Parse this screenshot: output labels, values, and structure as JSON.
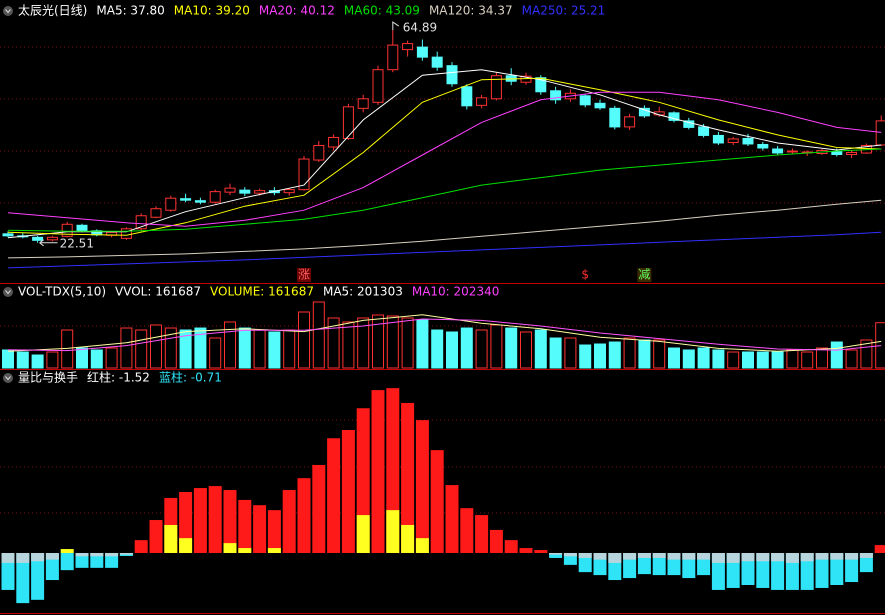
{
  "chart_data": [
    {
      "type": "candlestick",
      "title": "太辰光(日线)",
      "ylim": [
        14.5,
        66.9
      ],
      "up_color": "#ff3232",
      "down_color": "#54fcfc",
      "open": [
        24.3,
        23.9,
        23.6,
        23.1,
        23.8,
        26.0,
        24.9,
        24.0,
        23.4,
        25.3,
        27.6,
        29.0,
        31.3,
        30.9,
        30.6,
        32.6,
        33.0,
        32.4,
        32.9,
        32.5,
        33.1,
        39.0,
        41.6,
        43.3,
        49.3,
        50.5,
        57.0,
        61.0,
        61.5,
        59.5,
        57.8,
        53.6,
        49.9,
        51.2,
        55.8,
        54.5,
        55.4,
        52.8,
        51.2,
        51.8,
        50.3,
        49.3,
        45.6,
        49.3,
        48.0,
        48.4,
        46.8,
        45.6,
        43.9,
        42.5,
        43.3,
        42.1,
        41.2,
        40.6,
        40.5,
        40.3,
        40.7,
        40.1,
        40.4,
        42.0
      ],
      "high": [
        24.8,
        24.5,
        23.9,
        23.9,
        26.7,
        26.3,
        25.2,
        24.9,
        25.6,
        28.4,
        29.8,
        31.9,
        32.3,
        31.5,
        33.1,
        34.3,
        33.6,
        33.3,
        33.6,
        33.4,
        39.8,
        42.8,
        44.1,
        50.2,
        52.0,
        57.8,
        64.89,
        62.8,
        63.0,
        60.6,
        58.5,
        54.1,
        52.0,
        56.5,
        57.3,
        56.4,
        55.9,
        53.6,
        53.1,
        52.2,
        51.0,
        49.8,
        48.2,
        49.9,
        49.6,
        48.7,
        47.4,
        46.2,
        44.6,
        43.6,
        44.2,
        42.6,
        41.8,
        41.3,
        40.9,
        41.2,
        41.3,
        40.9,
        42.3,
        47.9
      ],
      "low": [
        23.6,
        23.4,
        22.51,
        22.8,
        23.6,
        24.6,
        23.8,
        23.6,
        23.1,
        25.0,
        27.4,
        28.7,
        30.6,
        30.2,
        30.3,
        32.0,
        31.8,
        31.9,
        32.0,
        31.9,
        32.9,
        38.6,
        40.9,
        43.0,
        48.5,
        50.0,
        56.5,
        59.6,
        58.8,
        56.8,
        53.6,
        49.1,
        49.3,
        50.9,
        53.9,
        54.0,
        52.0,
        50.2,
        50.6,
        49.5,
        49.0,
        45.1,
        45.0,
        47.4,
        47.6,
        46.5,
        45.1,
        43.5,
        42.0,
        42.0,
        41.8,
        40.9,
        40.0,
        40.1,
        39.8,
        40.0,
        39.7,
        39.4,
        40.2,
        41.8
      ],
      "close": [
        23.9,
        23.8,
        23.0,
        23.6,
        26.2,
        24.9,
        24.1,
        24.6,
        25.3,
        27.9,
        29.3,
        31.4,
        31.0,
        30.6,
        32.7,
        33.4,
        32.4,
        32.9,
        32.5,
        33.1,
        39.2,
        41.9,
        43.5,
        49.6,
        51.2,
        57.0,
        61.9,
        62.2,
        59.5,
        57.5,
        54.2,
        49.8,
        51.4,
        55.8,
        54.7,
        55.7,
        52.6,
        51.0,
        52.3,
        50.0,
        49.4,
        45.6,
        47.6,
        47.8,
        48.6,
        46.9,
        45.5,
        43.9,
        42.4,
        43.2,
        42.2,
        41.4,
        40.4,
        40.8,
        40.6,
        40.9,
        40.1,
        40.5,
        41.9,
        46.8
      ],
      "lines": [
        {
          "color": "#ffffff",
          "legend": {
            "value": 37.8,
            "label": "MA5: 37.80"
          },
          "x": [
            0,
            4,
            8,
            12,
            16,
            20,
            24,
            28,
            32,
            36,
            40,
            44,
            48,
            52,
            56,
            59
          ],
          "values": [
            23.5,
            24.7,
            24.7,
            28.7,
            31.5,
            34.0,
            47.0,
            55.9,
            57.0,
            55.0,
            52.0,
            48.0,
            45.0,
            42.4,
            41.0,
            42.0
          ]
        },
        {
          "color": "#ffff00",
          "legend": {
            "value": 39.2,
            "label": "MA10: 39.20"
          },
          "x": [
            0,
            4,
            8,
            12,
            16,
            20,
            24,
            28,
            32,
            36,
            40,
            44,
            48,
            52,
            56,
            59
          ],
          "values": [
            24.6,
            24.2,
            24.0,
            26.5,
            29.8,
            32.0,
            40.5,
            50.5,
            55.0,
            55.3,
            53.0,
            50.5,
            47.0,
            44.0,
            41.5,
            41.2
          ]
        },
        {
          "color": "#ff40ff",
          "legend": {
            "value": 40.12,
            "label": "MA20: 40.12"
          },
          "x": [
            0,
            4,
            8,
            12,
            16,
            20,
            24,
            28,
            32,
            36,
            40,
            44,
            48,
            52,
            56,
            59
          ],
          "values": [
            28.5,
            27.5,
            26.5,
            25.8,
            27.0,
            29.0,
            33.5,
            40.0,
            46.5,
            51.0,
            52.5,
            52.5,
            51.0,
            48.5,
            45.5,
            44.5
          ]
        },
        {
          "color": "#00e000",
          "legend": {
            "value": 43.09,
            "label": "MA60: 43.09"
          },
          "x": [
            0,
            4,
            8,
            12,
            16,
            20,
            24,
            28,
            32,
            36,
            40,
            44,
            48,
            52,
            56,
            59
          ],
          "values": [
            25.0,
            24.8,
            24.8,
            25.2,
            26.2,
            27.2,
            29.0,
            31.5,
            34.0,
            35.5,
            37.0,
            38.0,
            39.0,
            40.0,
            40.8,
            41.2
          ]
        },
        {
          "color": "#d8d0c0",
          "legend": {
            "value": 34.37,
            "label": "MA120: 34.37"
          },
          "x": [
            0,
            4,
            8,
            12,
            16,
            20,
            24,
            28,
            32,
            36,
            40,
            44,
            48,
            52,
            56,
            59
          ],
          "values": [
            19.5,
            19.7,
            20.0,
            20.3,
            20.8,
            21.3,
            22.0,
            22.8,
            23.8,
            24.8,
            25.8,
            26.8,
            28.0,
            29.0,
            30.2,
            31.0
          ]
        },
        {
          "color": "#3030ff",
          "legend": {
            "value": 25.21,
            "label": "MA250: 25.21"
          },
          "x": [
            0,
            4,
            8,
            12,
            16,
            20,
            24,
            28,
            32,
            36,
            40,
            44,
            48,
            52,
            56,
            59
          ],
          "values": [
            17.5,
            17.9,
            18.3,
            18.7,
            19.1,
            19.6,
            20.1,
            20.6,
            21.1,
            21.6,
            22.1,
            22.6,
            23.1,
            23.6,
            24.1,
            24.6
          ]
        }
      ],
      "annotations": [
        {
          "text": "涨",
          "at": 20,
          "color": "#ff6060",
          "background": "#6a0000"
        },
        {
          "text": "$",
          "at": 39,
          "color": "#ff3030"
        },
        {
          "text": "减",
          "at": 43,
          "color": "#60ff60",
          "background": "#3a2a00"
        }
      ]
    },
    {
      "type": "volume",
      "title": "VOL-TDX(5,10)",
      "ylim": [
        0,
        250000
      ],
      "readouts": [
        {
          "value": 161687,
          "label": "VVOL: 161687",
          "color": "#ffffff"
        },
        {
          "value": 161687,
          "label": "VOLUME: 161687",
          "color": "#ffff00"
        },
        {
          "value": 201303,
          "label": "MA5: 201303",
          "color": "#ffffff"
        },
        {
          "value": 202340,
          "label": "MA10: 202340",
          "color": "#ff40ff"
        }
      ],
      "values": [
        64300,
        57100,
        46400,
        57100,
        135700,
        71400,
        64300,
        71400,
        142800,
        135700,
        153600,
        142800,
        135700,
        142800,
        107100,
        164300,
        142800,
        135700,
        128600,
        135700,
        200000,
        235700,
        178600,
        164300,
        178600,
        189300,
        185700,
        178600,
        171400,
        135700,
        128600,
        142800,
        135700,
        153600,
        142800,
        128600,
        135700,
        107100,
        107100,
        82100,
        85700,
        92800,
        107100,
        100000,
        100000,
        71400,
        64300,
        71400,
        64300,
        57100,
        57100,
        57100,
        57100,
        64300,
        57100,
        71400,
        92800,
        64300,
        100000,
        161687
      ],
      "lines": [
        {
          "color": "#ffffa0",
          "x": [
            0,
            4,
            8,
            12,
            16,
            20,
            24,
            28,
            32,
            36,
            40,
            44,
            48,
            52,
            56,
            59
          ],
          "values": [
            60000,
            70000,
            90000,
            130000,
            140000,
            130000,
            170000,
            190000,
            160000,
            140000,
            110000,
            95000,
            70000,
            60000,
            70000,
            95000
          ]
        },
        {
          "color": "#ff55ff",
          "x": [
            0,
            4,
            8,
            12,
            16,
            20,
            24,
            28,
            32,
            36,
            40,
            44,
            48,
            52,
            56,
            59
          ],
          "values": [
            65000,
            62000,
            80000,
            115000,
            135000,
            135000,
            150000,
            175000,
            170000,
            150000,
            125000,
            105000,
            85000,
            68000,
            64000,
            80000
          ]
        }
      ]
    },
    {
      "type": "dual_bar",
      "title": "量比与换手",
      "ylim": [
        -1.88,
        5.55
      ],
      "series": [
        {
          "legend": {
            "value": -1.52,
            "label": "红柱: -1.52",
            "color": "#ffffff"
          },
          "pos_color": "#ff1a1a",
          "neg_color": "#30e4f8",
          "values": [
            -1.12,
            -1.52,
            -1.42,
            -0.82,
            -0.52,
            -0.45,
            -0.45,
            -0.45,
            -0.09,
            0.39,
            1,
            1.67,
            1.85,
            1.97,
            2.03,
            1.91,
            1.61,
            1.45,
            1.3,
            1.91,
            2.27,
            2.67,
            3.48,
            3.73,
            4.39,
            4.94,
            5,
            4.55,
            4.03,
            3.12,
            2.06,
            1.36,
            1.15,
            0.7,
            0.39,
            0.15,
            0.09,
            -0.15,
            -0.36,
            -0.58,
            -0.67,
            -0.82,
            -0.76,
            -0.64,
            -0.67,
            -0.67,
            -0.76,
            -0.67,
            -1.12,
            -1.06,
            -0.97,
            -1.06,
            -1.12,
            -1.12,
            -1.12,
            -1.06,
            -0.97,
            -0.88,
            -0.58,
            0.24
          ]
        },
        {
          "legend": {
            "value": -0.71,
            "label": "蓝柱: -0.71",
            "color": "#30e4f8"
          },
          "pos_color": "#ffff20",
          "neg_color": "#b8d4dc",
          "values": [
            -0.3,
            -0.3,
            -0.25,
            -0.2,
            0.12,
            -0.1,
            -0.1,
            -0.1,
            -0.05,
            0,
            0,
            0.85,
            0.45,
            0,
            0,
            0.3,
            0.15,
            0,
            0.15,
            0,
            0,
            0,
            0,
            0,
            1.15,
            0,
            1.3,
            0.85,
            0.45,
            0,
            0,
            0,
            0,
            0,
            0,
            0,
            0,
            -0.05,
            -0.1,
            -0.15,
            -0.2,
            -0.3,
            -0.2,
            -0.15,
            -0.15,
            -0.2,
            -0.2,
            -0.2,
            -0.3,
            -0.3,
            -0.25,
            -0.25,
            -0.25,
            -0.3,
            -0.25,
            -0.2,
            -0.2,
            -0.2,
            -0.15,
            0
          ]
        }
      ]
    }
  ]
}
